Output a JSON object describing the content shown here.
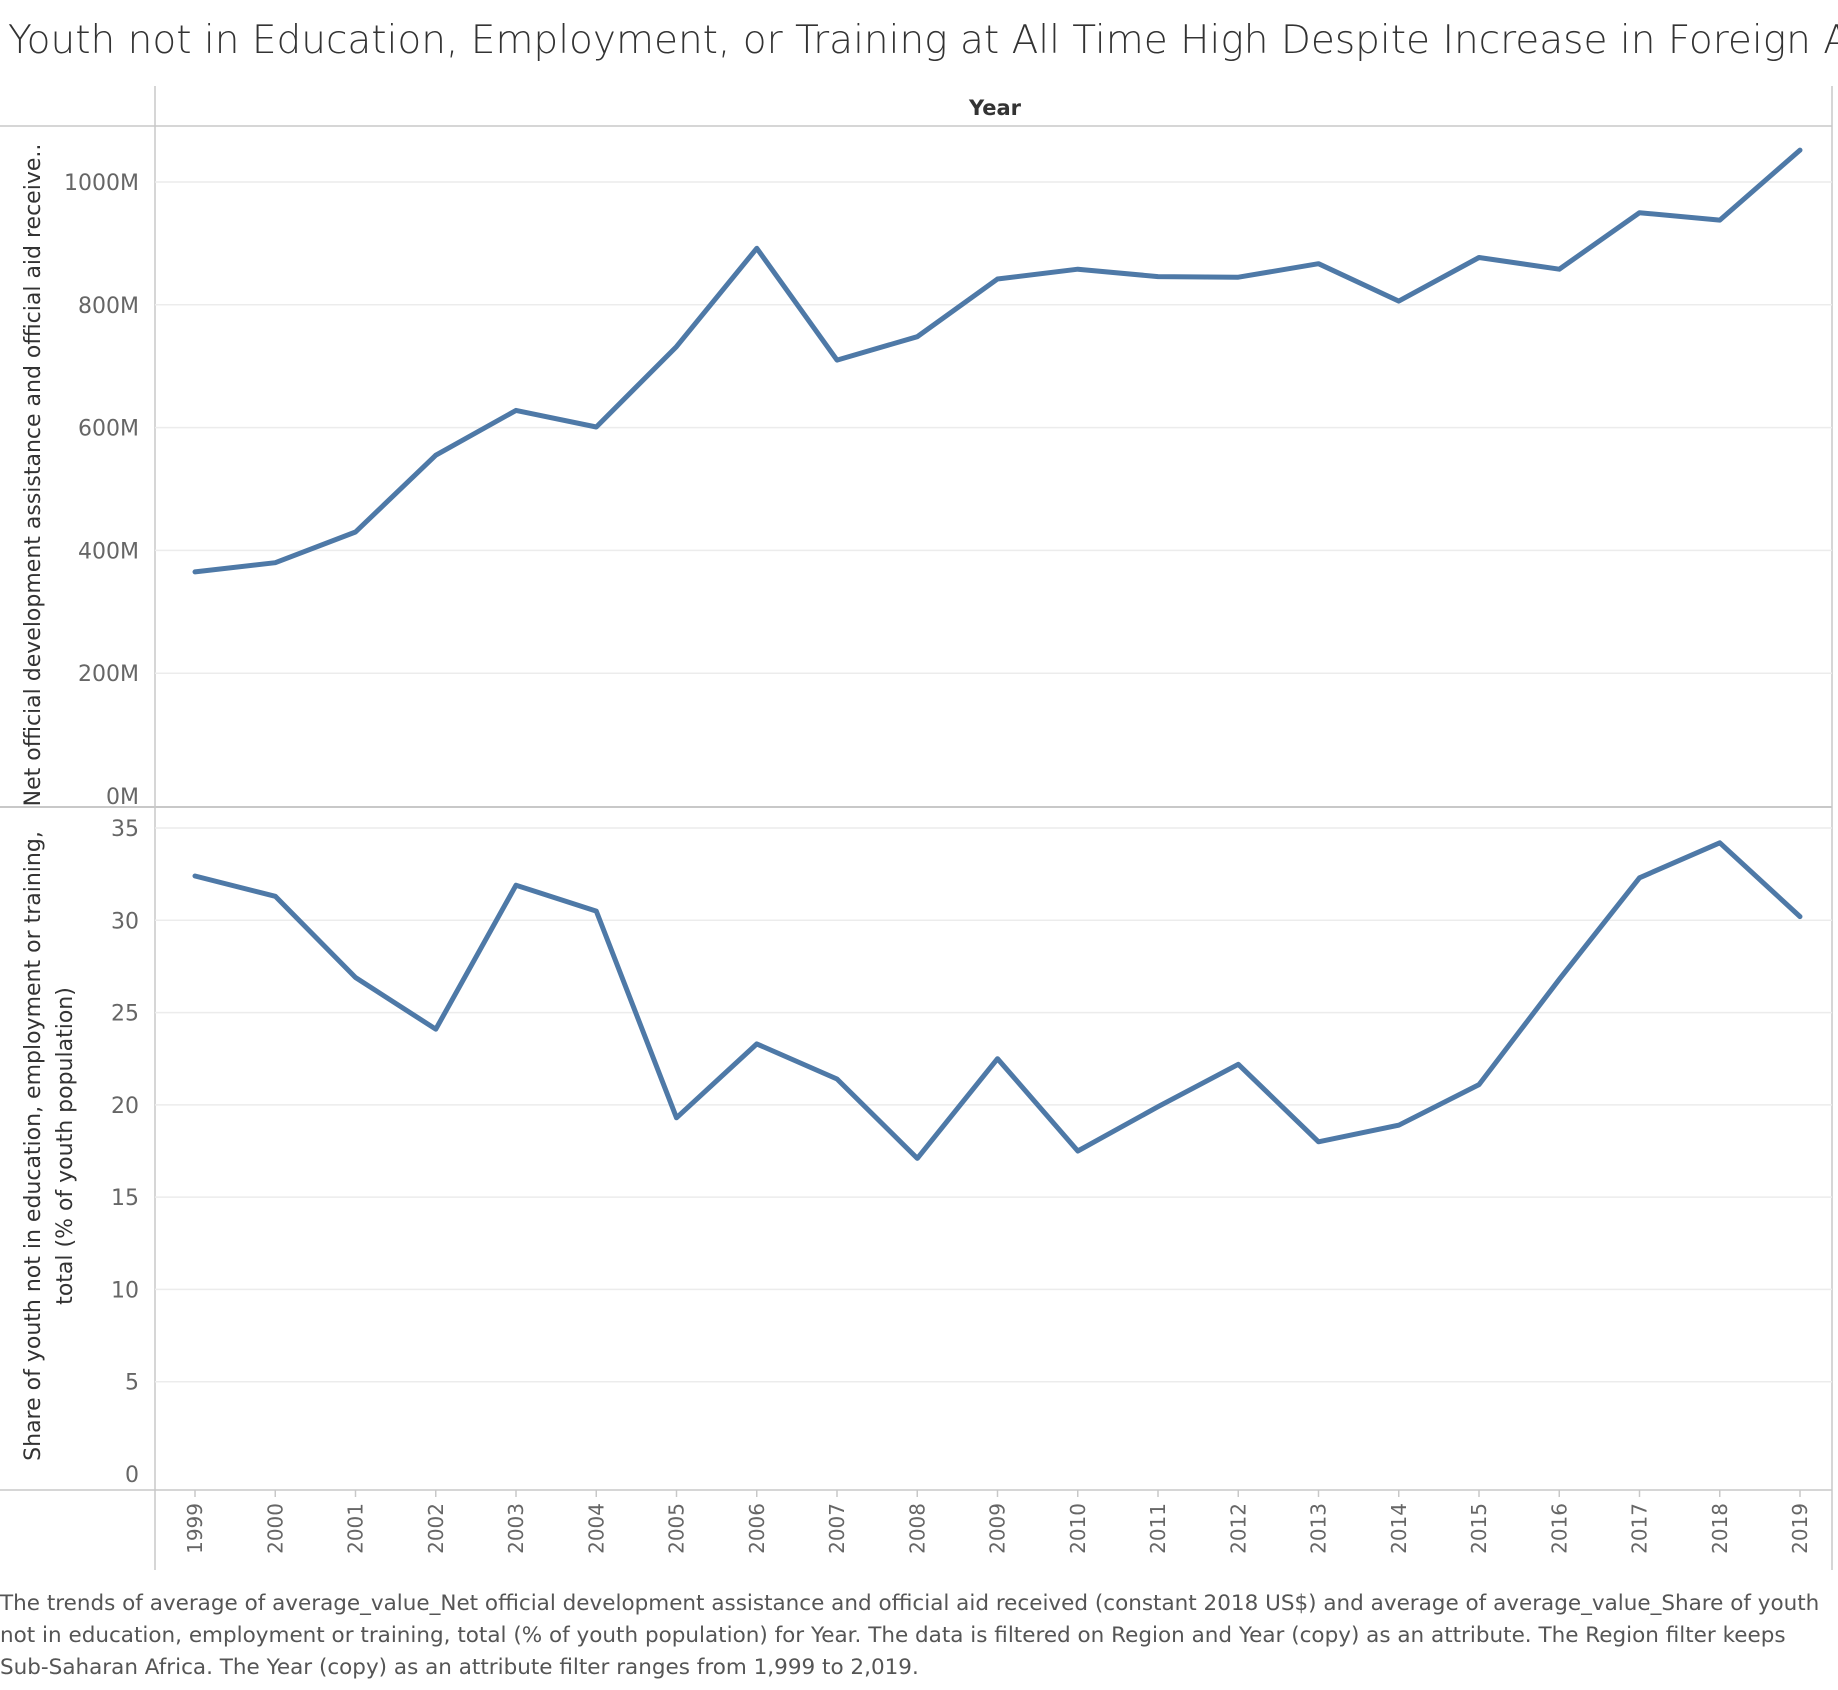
{
  "title": "Youth not in Education, Employment, or Training at All Time High Despite Increase in Foreign Aid",
  "caption": "The trends of average of average_value_Net official development assistance and official aid received (constant 2018 US$) and average of average_value_Share of youth not in education, employment or training, total (% of youth population) for Year. The data is filtered on Region and Year (copy) as an attribute. The Region filter keeps Sub-Saharan Africa. The Year (copy) as an attribute filter ranges from 1,999 to 2,019.",
  "colors": {
    "line": "#4e79a7",
    "grid": "#ececec",
    "border": "#c8c8c8"
  },
  "chart_data": {
    "type": "line",
    "column_header": "Year",
    "x": [
      "1999",
      "2000",
      "2001",
      "2002",
      "2003",
      "2004",
      "2005",
      "2006",
      "2007",
      "2008",
      "2009",
      "2010",
      "2011",
      "2012",
      "2013",
      "2014",
      "2015",
      "2016",
      "2017",
      "2018",
      "2019"
    ],
    "panels": [
      {
        "ylabel": "Net official development assistance and official aid receive..",
        "ylim": [
          0,
          1050000000
        ],
        "yticks": [
          0,
          200000000,
          400000000,
          600000000,
          800000000,
          1000000000
        ],
        "ytick_labels": [
          "0M",
          "200M",
          "400M",
          "600M",
          "800M",
          "1000M"
        ],
        "values": [
          365000000,
          380000000,
          430000000,
          555000000,
          628000000,
          601000000,
          732000000,
          892000000,
          710000000,
          748000000,
          842000000,
          858000000,
          846000000,
          845000000,
          867000000,
          806000000,
          877000000,
          858000000,
          950000000,
          938000000,
          1052000000
        ]
      },
      {
        "ylabel_lines": [
          "Share of youth not in education, employment or training,",
          "total (% of youth population)"
        ],
        "ylim": [
          0,
          35
        ],
        "yticks": [
          0,
          5,
          10,
          15,
          20,
          25,
          30,
          35
        ],
        "ytick_labels": [
          "0",
          "5",
          "10",
          "15",
          "20",
          "25",
          "30",
          "35"
        ],
        "values": [
          32.4,
          31.3,
          26.9,
          24.1,
          31.9,
          30.5,
          19.3,
          23.3,
          21.4,
          17.1,
          22.5,
          17.5,
          19.9,
          22.2,
          18.0,
          18.9,
          21.1,
          26.8,
          32.3,
          34.2,
          30.2
        ]
      }
    ],
    "grid": true,
    "legend": "none"
  }
}
